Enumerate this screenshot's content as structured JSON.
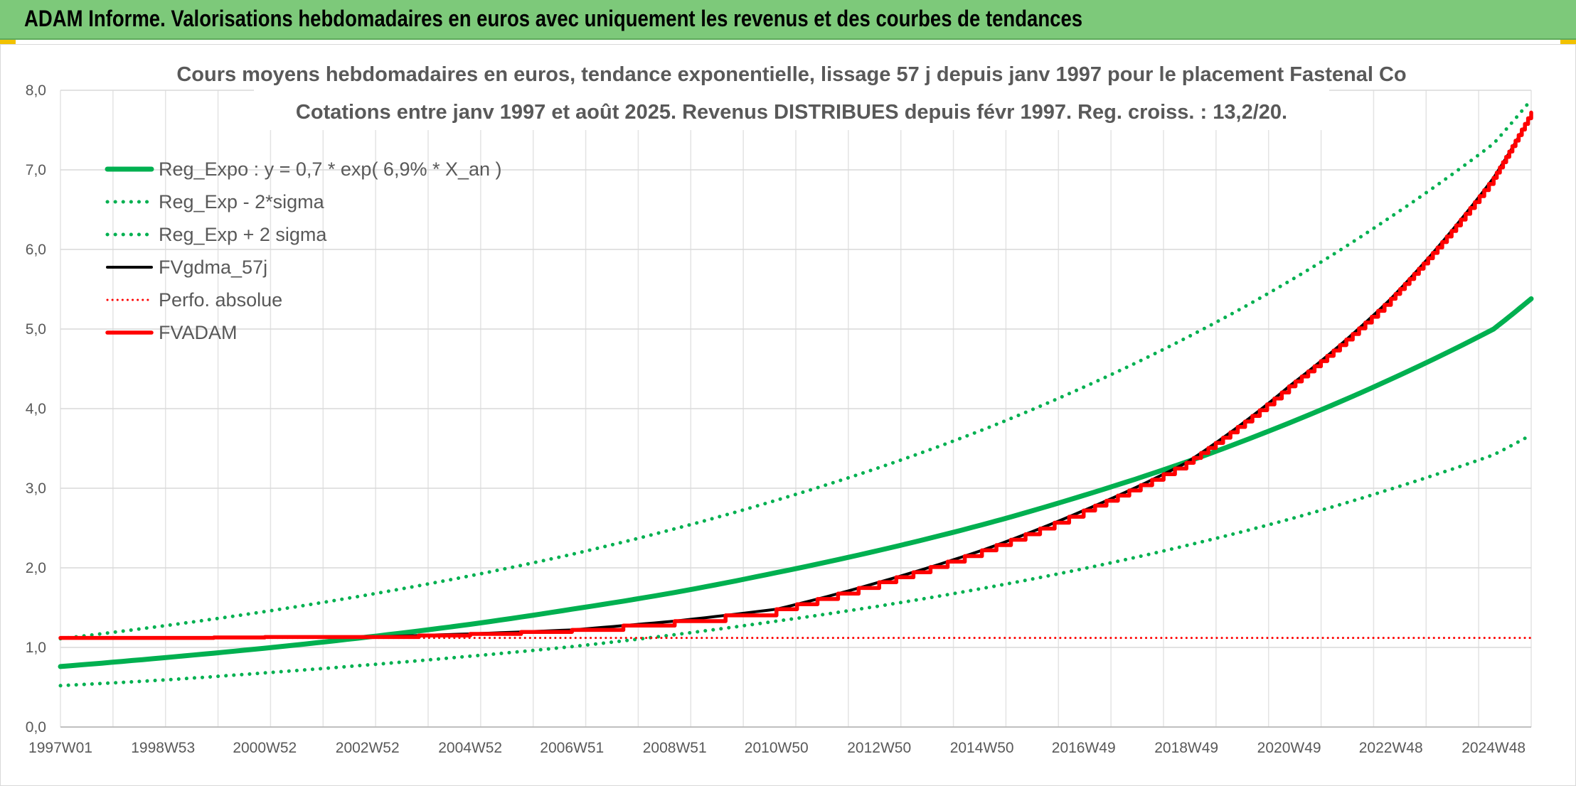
{
  "banner": {
    "title": "ADAM Informe. Valorisations hebdomadaires en euros avec uniquement les revenus et des courbes de tendances"
  },
  "colors": {
    "banner": "#7dc97a",
    "regression": "#00b050",
    "fvgdma": "#000000",
    "fvadam": "#ff0000",
    "perfo": "#ff0000"
  },
  "chart_data": {
    "type": "line",
    "title": "Cours moyens hebdomadaires en euros, tendance exponentielle, lissage 57 j depuis janv 1997 pour le placement Fastenal Co",
    "subtitle": "Cotations entre janv 1997 et août 2025. Revenus DISTRIBUES depuis févr 1997. Reg. croiss. : 13,2/20.",
    "xlabel": "",
    "ylabel": "",
    "x_range": [
      "1997W01",
      "2025W34"
    ],
    "x_tick_labels": [
      "1997W01",
      "1998W53",
      "2000W52",
      "2002W52",
      "2004W52",
      "2006W51",
      "2008W51",
      "2010W50",
      "2012W50",
      "2014W50",
      "2016W49",
      "2018W49",
      "2020W49",
      "2022W48",
      "2024W48"
    ],
    "ylim": [
      0,
      8
    ],
    "y_tick_labels": [
      "0,0",
      "1,0",
      "2,0",
      "3,0",
      "4,0",
      "5,0",
      "6,0",
      "7,0",
      "8,0"
    ],
    "grid": true,
    "legend_position": "top-left",
    "series": [
      {
        "name": "Reg_Expo : y = 0,7 * exp( 6,9% *  X_an )",
        "style": "solid-thick",
        "x": [
          "1997W01",
          "1998W53",
          "2000W52",
          "2002W52",
          "2004W52",
          "2006W51",
          "2008W51",
          "2010W50",
          "2012W50",
          "2014W50",
          "2016W49",
          "2018W49",
          "2020W49",
          "2022W48",
          "2024W48",
          "2025W34"
        ],
        "values": [
          0.76,
          0.87,
          0.99,
          1.13,
          1.29,
          1.48,
          1.69,
          1.94,
          2.22,
          2.54,
          2.91,
          3.33,
          3.82,
          4.37,
          5.0,
          5.38
        ]
      },
      {
        "name": "Reg_Exp - 2*sigma",
        "style": "dotted",
        "x": [
          "1997W01",
          "1998W53",
          "2000W52",
          "2002W52",
          "2004W52",
          "2006W51",
          "2008W51",
          "2010W50",
          "2012W50",
          "2014W50",
          "2016W49",
          "2018W49",
          "2020W49",
          "2022W48",
          "2024W48",
          "2025W34"
        ],
        "values": [
          0.52,
          0.59,
          0.68,
          0.78,
          0.89,
          1.01,
          1.16,
          1.33,
          1.52,
          1.74,
          1.99,
          2.28,
          2.61,
          2.99,
          3.42,
          3.67
        ]
      },
      {
        "name": "Reg_Exp + 2 sigma",
        "style": "dotted",
        "x": [
          "1997W01",
          "1998W53",
          "2000W52",
          "2002W52",
          "2004W52",
          "2006W51",
          "2008W51",
          "2010W50",
          "2012W50",
          "2014W50",
          "2016W49",
          "2018W49",
          "2020W49",
          "2022W48",
          "2024W48",
          "2025W34"
        ],
        "values": [
          1.11,
          1.27,
          1.45,
          1.66,
          1.9,
          2.17,
          2.49,
          2.85,
          3.26,
          3.73,
          4.27,
          4.89,
          5.6,
          6.41,
          7.33,
          7.88
        ]
      },
      {
        "name": "FVgdma_57j",
        "style": "solid-thin",
        "x": [
          "1997W01",
          "1998W53",
          "2000W52",
          "2002W52",
          "2004W52",
          "2006W51",
          "2008W51",
          "2010W50",
          "2012W50",
          "2014W50",
          "2016W49",
          "2018W49",
          "2020W49",
          "2022W48",
          "2024W48",
          "2025W34"
        ],
        "values": [
          1.12,
          1.12,
          1.13,
          1.13,
          1.17,
          1.22,
          1.33,
          1.48,
          1.82,
          2.22,
          2.72,
          3.32,
          4.28,
          5.38,
          6.9,
          7.68
        ]
      },
      {
        "name": "Perfo. absolue",
        "style": "dotted",
        "x": [
          "1997W01",
          "2025W34"
        ],
        "values": [
          1.12,
          1.12
        ]
      },
      {
        "name": "FVADAM",
        "style": "step-thick",
        "x": [
          "1997W01",
          "1998W53",
          "2000W52",
          "2002W52",
          "2004W52",
          "2006W51",
          "2008W51",
          "2010W50",
          "2012W50",
          "2014W50",
          "2016W49",
          "2018W49",
          "2020W49",
          "2022W48",
          "2024W48",
          "2025W34"
        ],
        "values": [
          1.12,
          1.12,
          1.13,
          1.13,
          1.17,
          1.22,
          1.33,
          1.48,
          1.82,
          2.22,
          2.72,
          3.32,
          4.28,
          5.38,
          6.9,
          7.72
        ]
      }
    ]
  }
}
